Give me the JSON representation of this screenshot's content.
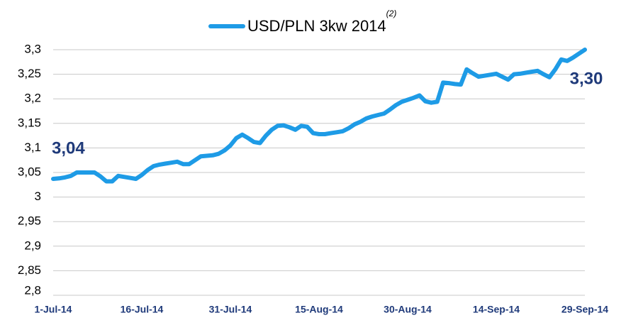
{
  "chart_data": {
    "type": "line",
    "legend_superscript": "(2)",
    "categories": [
      "1-Jul-14",
      null,
      null,
      null,
      null,
      null,
      null,
      null,
      null,
      null,
      null,
      null,
      null,
      null,
      null,
      "16-Jul-14",
      null,
      null,
      null,
      null,
      null,
      null,
      null,
      null,
      null,
      null,
      null,
      null,
      null,
      null,
      "31-Jul-14",
      null,
      null,
      null,
      null,
      null,
      null,
      null,
      null,
      null,
      null,
      null,
      null,
      null,
      null,
      "15-Aug-14",
      null,
      null,
      null,
      null,
      null,
      null,
      null,
      null,
      null,
      null,
      null,
      null,
      null,
      null,
      "30-Aug-14",
      null,
      null,
      null,
      null,
      null,
      null,
      null,
      null,
      null,
      null,
      null,
      null,
      null,
      null,
      "14-Sep-14",
      null,
      null,
      null,
      null,
      null,
      null,
      null,
      null,
      null,
      null,
      null,
      null,
      null,
      null,
      "29-Sep-14"
    ],
    "series": [
      {
        "name": "USD/PLN 3kw 2014",
        "color": "#1e9be6",
        "values": [
          3.037,
          3.038,
          3.04,
          3.043,
          3.05,
          3.05,
          3.05,
          3.05,
          3.042,
          3.032,
          3.032,
          3.043,
          3.041,
          3.039,
          3.037,
          3.045,
          3.055,
          3.063,
          3.066,
          3.068,
          3.07,
          3.072,
          3.067,
          3.067,
          3.075,
          3.083,
          3.084,
          3.085,
          3.088,
          3.095,
          3.105,
          3.12,
          3.127,
          3.12,
          3.112,
          3.11,
          3.125,
          3.137,
          3.145,
          3.146,
          3.142,
          3.137,
          3.145,
          3.143,
          3.13,
          3.128,
          3.128,
          3.13,
          3.132,
          3.134,
          3.14,
          3.148,
          3.153,
          3.16,
          3.164,
          3.167,
          3.17,
          3.178,
          3.187,
          3.194,
          3.198,
          3.202,
          3.207,
          3.195,
          3.192,
          3.194,
          3.233,
          3.232,
          3.23,
          3.229,
          3.26,
          3.252,
          3.245,
          3.247,
          3.249,
          3.251,
          3.245,
          3.239,
          3.25,
          3.251,
          3.253,
          3.255,
          3.257,
          3.25,
          3.244,
          3.26,
          3.28,
          3.277,
          3.284,
          3.292,
          3.3
        ],
        "value_labels": [
          "3,04",
          null,
          null,
          null,
          null,
          null,
          null,
          null,
          null,
          null,
          null,
          null,
          null,
          null,
          null,
          null,
          null,
          null,
          null,
          null,
          null,
          null,
          null,
          null,
          null,
          null,
          null,
          null,
          null,
          null,
          null,
          null,
          null,
          null,
          null,
          null,
          null,
          null,
          null,
          null,
          null,
          null,
          null,
          null,
          null,
          null,
          null,
          null,
          null,
          null,
          null,
          null,
          null,
          null,
          null,
          null,
          null,
          null,
          null,
          null,
          null,
          null,
          null,
          null,
          null,
          null,
          null,
          null,
          null,
          null,
          null,
          null,
          null,
          null,
          null,
          null,
          null,
          null,
          null,
          null,
          null,
          null,
          null,
          null,
          null,
          null,
          null,
          null,
          null,
          null,
          "3,30"
        ]
      }
    ],
    "ylim": [
      2.8,
      3.3
    ],
    "yticks": [
      {
        "value": 2.8,
        "label": "2,8"
      },
      {
        "value": 2.85,
        "label": "2,85"
      },
      {
        "value": 2.9,
        "label": "2,9"
      },
      {
        "value": 2.95,
        "label": "2,95"
      },
      3,
      {
        "value": 3.05,
        "label": "3,05"
      },
      {
        "value": 3.1,
        "label": "3,1"
      },
      {
        "value": 3.15,
        "label": "3,15"
      },
      {
        "value": 3.2,
        "label": "3,2"
      },
      {
        "value": 3.25,
        "label": "3,25"
      },
      {
        "value": 3.3,
        "label": "3,3"
      }
    ],
    "grid": true,
    "legend": "top"
  }
}
